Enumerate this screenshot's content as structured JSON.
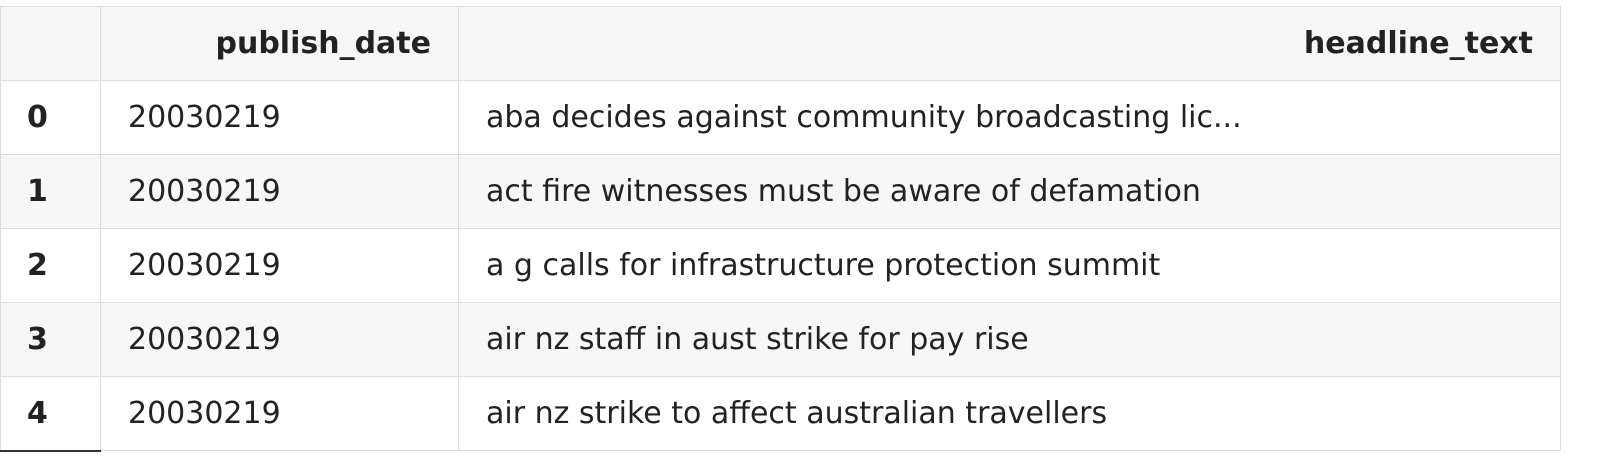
{
  "table": {
    "columns": [
      "",
      "publish_date",
      "headline_text"
    ],
    "rows": [
      {
        "index": "0",
        "publish_date": "20030219",
        "headline_text": "aba decides against community broadcasting lic..."
      },
      {
        "index": "1",
        "publish_date": "20030219",
        "headline_text": "act fire witnesses must be aware of defamation"
      },
      {
        "index": "2",
        "publish_date": "20030219",
        "headline_text": "a g calls for infrastructure protection summit"
      },
      {
        "index": "3",
        "publish_date": "20030219",
        "headline_text": "air nz staff in aust strike for pay rise"
      },
      {
        "index": "4",
        "publish_date": "20030219",
        "headline_text": "air nz strike to affect australian travellers"
      }
    ]
  },
  "colors": {
    "border": "#dcdcdc",
    "header_bg": "#f7f7f7",
    "stripe_bg": "#f7f7f7",
    "text": "#222222"
  }
}
